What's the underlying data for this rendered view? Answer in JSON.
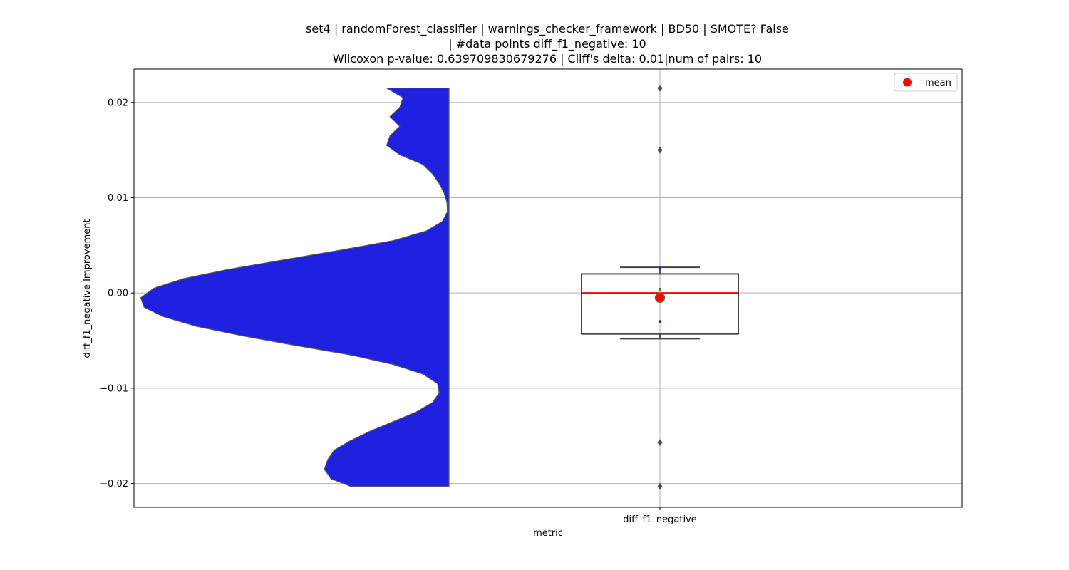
{
  "chart_data": {
    "type": "violin_box",
    "title_lines": [
      "set4 | randomForest_classifier | warnings_checker_framework | BD50 | SMOTE? False",
      "| #data points diff_f1_negative: 10",
      "Wilcoxon p-value: 0.639709830679276 | Cliff's delta: 0.01|num of pairs: 10"
    ],
    "xlabel": "metric",
    "ylabel": "diff_f1_negative Improvement",
    "categories": [
      "diff_f1_negative"
    ],
    "ylim": [
      -0.0225,
      0.0235
    ],
    "yticks": [
      0.02,
      0.01,
      0.0,
      -0.01,
      -0.02
    ],
    "ytick_labels": [
      "0.02",
      "0.01",
      "0.00",
      "−0.01",
      "−0.02"
    ],
    "grid": true,
    "legend": {
      "position": "top-right",
      "entries": [
        {
          "label": "mean",
          "marker": "circle",
          "color": "#ff0000"
        }
      ]
    },
    "violin": {
      "color": "#2020e0",
      "edge_color": "#555555",
      "y_min": -0.0203,
      "y_max": 0.0215,
      "density_profile": [
        [
          0.0215,
          0.19
        ],
        [
          0.0205,
          0.14
        ],
        [
          0.0195,
          0.15
        ],
        [
          0.0185,
          0.18
        ],
        [
          0.0175,
          0.15
        ],
        [
          0.0165,
          0.18
        ],
        [
          0.0155,
          0.19
        ],
        [
          0.0145,
          0.15
        ],
        [
          0.0135,
          0.08
        ],
        [
          0.0125,
          0.05
        ],
        [
          0.0115,
          0.03
        ],
        [
          0.0105,
          0.015
        ],
        [
          0.0095,
          0.006
        ],
        [
          0.0085,
          0.005
        ],
        [
          0.0075,
          0.02
        ],
        [
          0.0065,
          0.07
        ],
        [
          0.0055,
          0.17
        ],
        [
          0.0045,
          0.33
        ],
        [
          0.0035,
          0.5
        ],
        [
          0.0025,
          0.67
        ],
        [
          0.0015,
          0.81
        ],
        [
          0.0005,
          0.9
        ],
        [
          -0.0005,
          0.94
        ],
        [
          -0.0015,
          0.93
        ],
        [
          -0.0025,
          0.87
        ],
        [
          -0.0035,
          0.77
        ],
        [
          -0.0045,
          0.63
        ],
        [
          -0.0055,
          0.47
        ],
        [
          -0.0065,
          0.3
        ],
        [
          -0.0075,
          0.17
        ],
        [
          -0.0085,
          0.08
        ],
        [
          -0.0095,
          0.035
        ],
        [
          -0.0105,
          0.03
        ],
        [
          -0.0115,
          0.05
        ],
        [
          -0.0125,
          0.1
        ],
        [
          -0.0135,
          0.17
        ],
        [
          -0.0145,
          0.24
        ],
        [
          -0.0155,
          0.3
        ],
        [
          -0.0165,
          0.35
        ],
        [
          -0.0175,
          0.37
        ],
        [
          -0.0185,
          0.38
        ],
        [
          -0.0195,
          0.36
        ],
        [
          -0.0203,
          0.3
        ]
      ]
    },
    "box": {
      "q1": -0.0043,
      "median": 0.0,
      "q3": 0.002,
      "whisker_low": -0.0048,
      "whisker_high": 0.0027,
      "median_color": "#ff0000",
      "edge_color": "#444444"
    },
    "outliers": [
      0.0215,
      0.015,
      -0.0157,
      -0.0203
    ],
    "mean": {
      "value": -0.0005,
      "color": "#ff0000",
      "edge_color": "#2e8b2e"
    },
    "inner_points": [
      {
        "value": 0.0026,
        "color": "#2020e0"
      },
      {
        "value": 0.0022,
        "color": "#555555"
      },
      {
        "value": 0.0004,
        "color": "#555555"
      },
      {
        "value": -0.003,
        "color": "#2020e0"
      },
      {
        "value": -0.0046,
        "color": "#555555"
      }
    ]
  }
}
